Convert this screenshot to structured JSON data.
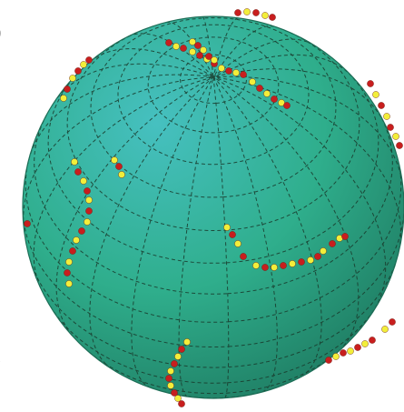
{
  "figure": {
    "panel_label": ")",
    "corner_mark": "/",
    "colors": {
      "sphere_highlight": "#46c0c0",
      "sphere_mid": "#2fae8c",
      "sphere_shadow": "#1f7d63",
      "grid_line": "#1a3a2c",
      "defect_red": "#c81e1e",
      "defect_yellow": "#f2ee3a"
    },
    "grid": {
      "style": "dashed",
      "meridians": 24,
      "parallels": 18
    }
  }
}
